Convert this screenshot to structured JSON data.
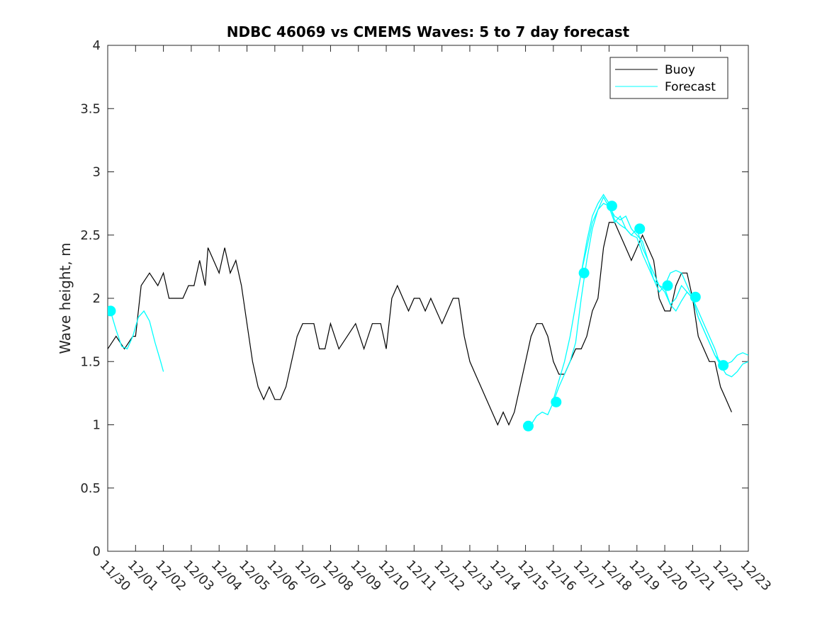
{
  "chart_data": {
    "type": "line",
    "title": "NDBC 46069 vs CMEMS Waves: 5 to 7 day forecast",
    "xlabel": "",
    "ylabel": "Wave height, m",
    "xlim": [
      0,
      23
    ],
    "ylim": [
      0,
      4
    ],
    "categories": [
      "11/30",
      "12/01",
      "12/02",
      "12/03",
      "12/04",
      "12/05",
      "12/06",
      "12/07",
      "12/08",
      "12/09",
      "12/10",
      "12/11",
      "12/12",
      "12/13",
      "12/14",
      "12/15",
      "12/16",
      "12/17",
      "12/18",
      "12/19",
      "12/20",
      "12/21",
      "12/22",
      "12/23"
    ],
    "yticks": [
      0,
      0.5,
      1,
      1.5,
      2,
      2.5,
      3,
      3.5,
      4
    ],
    "ytick_labels": [
      "0",
      "0.5",
      "1",
      "1.5",
      "2",
      "2.5",
      "3",
      "3.5",
      "4"
    ],
    "legend": {
      "position": "top-right",
      "entries": [
        "Buoy",
        "Forecast"
      ]
    },
    "colors": {
      "buoy": "#000000",
      "forecast": "#00ffff"
    },
    "series": [
      {
        "name": "Buoy",
        "x": [
          0,
          0.3,
          0.6,
          0.9,
          1.0,
          1.2,
          1.5,
          1.8,
          2.0,
          2.2,
          2.5,
          2.7,
          2.9,
          3.1,
          3.3,
          3.5,
          3.6,
          3.8,
          4.0,
          4.2,
          4.4,
          4.6,
          4.8,
          5.0,
          5.2,
          5.4,
          5.6,
          5.8,
          6.0,
          6.2,
          6.4,
          6.6,
          6.8,
          7.0,
          7.2,
          7.4,
          7.6,
          7.8,
          8.0,
          8.3,
          8.6,
          8.9,
          9.2,
          9.5,
          9.8,
          10.0,
          10.2,
          10.4,
          10.6,
          10.8,
          11.0,
          11.2,
          11.4,
          11.6,
          11.8,
          12.0,
          12.2,
          12.4,
          12.6,
          12.8,
          13.0,
          13.2,
          13.4,
          13.6,
          13.8,
          14.0,
          14.2,
          14.4,
          14.6,
          14.8,
          15.0,
          15.2,
          15.4,
          15.6,
          15.8,
          16.0,
          16.2,
          16.4,
          16.6,
          16.8,
          17.0,
          17.2,
          17.4,
          17.6,
          17.8,
          18.0,
          18.2,
          18.4,
          18.6,
          18.8,
          19.0,
          19.2,
          19.4,
          19.6,
          19.8,
          20.0,
          20.2,
          20.4,
          20.6,
          20.8,
          21.0,
          21.2,
          21.4,
          21.6,
          21.8,
          22.0,
          22.2,
          22.4
        ],
        "values": [
          1.6,
          1.7,
          1.6,
          1.7,
          1.7,
          2.1,
          2.2,
          2.1,
          2.2,
          2.0,
          2.0,
          2.0,
          2.1,
          2.1,
          2.3,
          2.1,
          2.4,
          2.3,
          2.2,
          2.4,
          2.2,
          2.3,
          2.1,
          1.8,
          1.5,
          1.3,
          1.2,
          1.3,
          1.2,
          1.2,
          1.3,
          1.5,
          1.7,
          1.8,
          1.8,
          1.8,
          1.6,
          1.6,
          1.8,
          1.6,
          1.7,
          1.8,
          1.6,
          1.8,
          1.8,
          1.6,
          2.0,
          2.1,
          2.0,
          1.9,
          2.0,
          2.0,
          1.9,
          2.0,
          1.9,
          1.8,
          1.9,
          2.0,
          2.0,
          1.7,
          1.5,
          1.4,
          1.3,
          1.2,
          1.1,
          1.0,
          1.1,
          1.0,
          1.1,
          1.3,
          1.5,
          1.7,
          1.8,
          1.8,
          1.7,
          1.5,
          1.4,
          1.4,
          1.5,
          1.6,
          1.6,
          1.7,
          1.9,
          2.0,
          2.4,
          2.6,
          2.6,
          2.5,
          2.4,
          2.3,
          2.4,
          2.5,
          2.4,
          2.3,
          2.0,
          1.9,
          1.9,
          2.1,
          2.2,
          2.2,
          2.0,
          1.7,
          1.6,
          1.5,
          1.5,
          1.3,
          1.2,
          1.1
        ]
      },
      {
        "name": "Forecast",
        "segments": [
          {
            "x": [
              0.1,
              0.3,
              0.5,
              0.7,
              0.9,
              1.1,
              1.3,
              1.5,
              1.7,
              1.9,
              2.0
            ],
            "values": [
              1.9,
              1.75,
              1.62,
              1.6,
              1.7,
              1.85,
              1.9,
              1.82,
              1.65,
              1.5,
              1.42
            ]
          },
          {
            "x": [
              15.0,
              15.2,
              15.4,
              15.6,
              15.8,
              16.0,
              16.2,
              16.4,
              16.6,
              16.8,
              17.0,
              17.2,
              17.4,
              17.6,
              17.8,
              18.0,
              18.2,
              18.4,
              18.6,
              18.8,
              19.0,
              19.2,
              19.4,
              19.6,
              19.8,
              20.0,
              20.2,
              20.4,
              20.6,
              20.8,
              21.0,
              21.2,
              21.4,
              21.6,
              21.8,
              22.0
            ],
            "values": [
              0.98,
              1.0,
              1.07,
              1.1,
              1.08,
              1.18,
              1.3,
              1.4,
              1.5,
              1.65,
              2.0,
              2.3,
              2.55,
              2.7,
              2.8,
              2.72,
              2.6,
              2.65,
              2.55,
              2.5,
              2.55,
              2.4,
              2.3,
              2.2,
              2.1,
              2.05,
              1.95,
              2.0,
              2.1,
              2.05,
              2.0,
              1.9,
              1.8,
              1.7,
              1.6,
              1.47
            ]
          },
          {
            "x": [
              16.0,
              16.2,
              16.4,
              16.6,
              16.8,
              17.0,
              17.2,
              17.4,
              17.6,
              17.8,
              18.0,
              18.2,
              18.4,
              18.6,
              18.8,
              19.0,
              19.2,
              19.4,
              19.6,
              19.8,
              20.0,
              20.2,
              20.4,
              20.6,
              20.8,
              21.0,
              21.2,
              21.4,
              21.6,
              21.8,
              22.0,
              22.2,
              22.4,
              22.6,
              22.8,
              23.0
            ],
            "values": [
              1.2,
              1.35,
              1.5,
              1.7,
              1.95,
              2.2,
              2.45,
              2.65,
              2.75,
              2.82,
              2.75,
              2.62,
              2.58,
              2.55,
              2.5,
              2.48,
              2.35,
              2.25,
              2.15,
              2.1,
              2.08,
              1.95,
              1.9,
              1.98,
              2.05,
              2.0,
              1.85,
              1.75,
              1.65,
              1.55,
              1.47,
              1.4,
              1.38,
              1.42,
              1.48,
              1.5
            ]
          },
          {
            "x": [
              17.0,
              17.2,
              17.4,
              17.6,
              17.8,
              18.0,
              18.2,
              18.4,
              18.6,
              18.8,
              19.0,
              19.2,
              19.4,
              19.6,
              19.8,
              20.0,
              20.2,
              20.4,
              20.6,
              20.8,
              21.0,
              21.2,
              21.4,
              21.6,
              21.8,
              22.0,
              22.2,
              22.4,
              22.6,
              22.8,
              23.0
            ],
            "values": [
              2.2,
              2.4,
              2.6,
              2.7,
              2.75,
              2.73,
              2.65,
              2.62,
              2.65,
              2.55,
              2.5,
              2.45,
              2.3,
              2.15,
              2.05,
              2.1,
              2.2,
              2.22,
              2.2,
              2.1,
              2.0,
              1.85,
              1.75,
              1.65,
              1.55,
              1.5,
              1.48,
              1.5,
              1.55,
              1.57,
              1.55
            ]
          }
        ],
        "markers": {
          "x": [
            0.1,
            15.1,
            16.1,
            17.1,
            18.1,
            19.1,
            20.1,
            21.1,
            22.1
          ],
          "values": [
            1.9,
            0.99,
            1.18,
            2.2,
            2.73,
            2.55,
            2.1,
            2.01,
            1.47
          ]
        }
      }
    ]
  }
}
